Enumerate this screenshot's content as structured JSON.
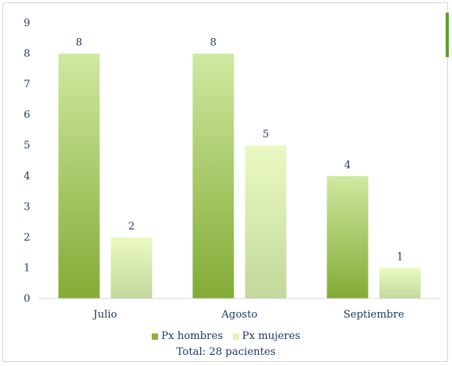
{
  "chart_data": {
    "type": "bar",
    "categories": [
      "Julio",
      "Agosto",
      "Septiembre"
    ],
    "series": [
      {
        "name": "Px hombres",
        "values": [
          8,
          8,
          4
        ],
        "color": "#8db33b"
      },
      {
        "name": "Px mujeres",
        "values": [
          2,
          5,
          1
        ],
        "color": "#e4f5b6"
      }
    ],
    "ylim": [
      0,
      9
    ],
    "yticks": [
      0,
      1,
      2,
      3,
      4,
      5,
      6,
      7,
      8,
      9
    ],
    "grid": false,
    "legend_position": "bottom",
    "note": "Total: 28 pacientes"
  },
  "colors": {
    "accent": "#5aa02c",
    "text": "#1f3864",
    "axis": "#d9d9d9"
  }
}
